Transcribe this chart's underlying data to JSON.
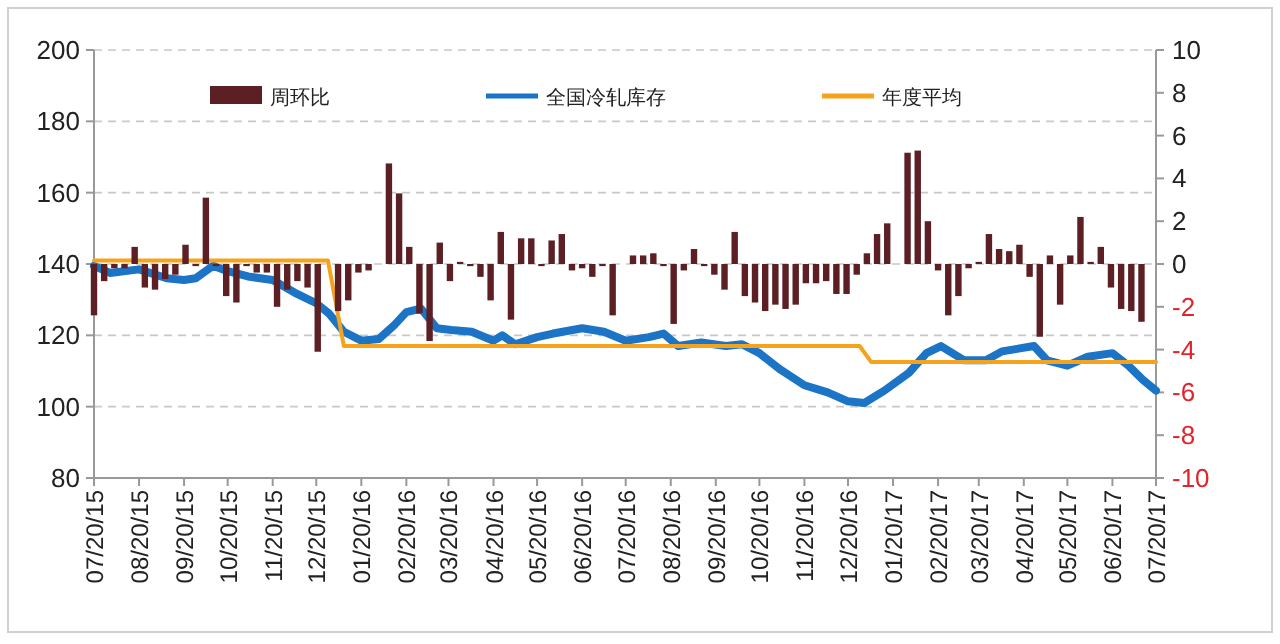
{
  "chart_data": {
    "type": "bar",
    "xlim": [
      "2015-07-20",
      "2017-07-20"
    ],
    "xticks": [
      {
        "value": "2015-07-20",
        "label": "07/20/15"
      },
      {
        "value": "2015-08-20",
        "label": "08/20/15"
      },
      {
        "value": "2015-09-20",
        "label": "09/20/15"
      },
      {
        "value": "2015-10-20",
        "label": "10/20/15"
      },
      {
        "value": "2015-11-20",
        "label": "11/20/15"
      },
      {
        "value": "2015-12-20",
        "label": "12/20/15"
      },
      {
        "value": "2016-01-20",
        "label": "01/20/16"
      },
      {
        "value": "2016-02-20",
        "label": "02/20/16"
      },
      {
        "value": "2016-03-20",
        "label": "03/20/16"
      },
      {
        "value": "2016-04-20",
        "label": "04/20/16"
      },
      {
        "value": "2016-05-20",
        "label": "05/20/16"
      },
      {
        "value": "2016-06-20",
        "label": "06/20/16"
      },
      {
        "value": "2016-07-20",
        "label": "07/20/16"
      },
      {
        "value": "2016-08-20",
        "label": "08/20/16"
      },
      {
        "value": "2016-09-20",
        "label": "09/20/16"
      },
      {
        "value": "2016-10-20",
        "label": "10/20/16"
      },
      {
        "value": "2016-11-20",
        "label": "11/20/16"
      },
      {
        "value": "2016-12-20",
        "label": "12/20/16"
      },
      {
        "value": "2017-01-20",
        "label": "01/20/17"
      },
      {
        "value": "2017-02-20",
        "label": "02/20/17"
      },
      {
        "value": "2017-03-20",
        "label": "03/20/17"
      },
      {
        "value": "2017-04-20",
        "label": "04/20/17"
      },
      {
        "value": "2017-05-20",
        "label": "05/20/17"
      },
      {
        "value": "2017-06-20",
        "label": "06/20/17"
      },
      {
        "value": "2017-07-20",
        "label": "07/20/17"
      }
    ],
    "ylim": [
      80,
      200
    ],
    "yticks": [
      80,
      100,
      120,
      140,
      160,
      180,
      200
    ],
    "y2lim": [
      -10,
      10
    ],
    "y2ticks": [
      -10,
      -8,
      -6,
      -4,
      -2,
      0,
      2,
      4,
      6,
      8,
      10
    ],
    "grid": "y",
    "legend": "top",
    "series": [
      {
        "name": "周环比",
        "axis": "y2",
        "color": "#5c1f24",
        "x": [
          "2015-07-20",
          "2015-07-27",
          "2015-08-03",
          "2015-08-10",
          "2015-08-17",
          "2015-08-24",
          "2015-08-31",
          "2015-09-07",
          "2015-09-14",
          "2015-09-21",
          "2015-09-28",
          "2015-10-05",
          "2015-10-12",
          "2015-10-19",
          "2015-10-26",
          "2015-11-02",
          "2015-11-09",
          "2015-11-16",
          "2015-11-23",
          "2015-11-30",
          "2015-12-07",
          "2015-12-14",
          "2015-12-21",
          "2016-01-04",
          "2016-01-11",
          "2016-01-18",
          "2016-01-25",
          "2016-02-08",
          "2016-02-15",
          "2016-02-22",
          "2016-02-29",
          "2016-03-07",
          "2016-03-14",
          "2016-03-21",
          "2016-03-28",
          "2016-04-04",
          "2016-04-11",
          "2016-04-18",
          "2016-04-25",
          "2016-05-02",
          "2016-05-09",
          "2016-05-16",
          "2016-05-23",
          "2016-05-30",
          "2016-06-06",
          "2016-06-13",
          "2016-06-20",
          "2016-06-27",
          "2016-07-04",
          "2016-07-11",
          "2016-07-25",
          "2016-08-01",
          "2016-08-08",
          "2016-08-15",
          "2016-08-22",
          "2016-08-29",
          "2016-09-05",
          "2016-09-12",
          "2016-09-19",
          "2016-09-26",
          "2016-10-03",
          "2016-10-10",
          "2016-10-17",
          "2016-10-24",
          "2016-10-31",
          "2016-11-07",
          "2016-11-14",
          "2016-11-21",
          "2016-11-28",
          "2016-12-05",
          "2016-12-12",
          "2016-12-19",
          "2016-12-26",
          "2017-01-02",
          "2017-01-09",
          "2017-01-16",
          "2017-01-30",
          "2017-02-06",
          "2017-02-13",
          "2017-02-20",
          "2017-02-27",
          "2017-03-06",
          "2017-03-13",
          "2017-03-20",
          "2017-03-27",
          "2017-04-03",
          "2017-04-10",
          "2017-04-17",
          "2017-04-24",
          "2017-05-01",
          "2017-05-08",
          "2017-05-15",
          "2017-05-22",
          "2017-05-29",
          "2017-06-05",
          "2017-06-12",
          "2017-06-19",
          "2017-06-26",
          "2017-07-03",
          "2017-07-10"
        ],
        "values": [
          -2.4,
          -0.8,
          -0.2,
          -0.2,
          0.8,
          -1.1,
          -1.2,
          -0.7,
          -0.5,
          0.9,
          -0.1,
          3.1,
          -0.1,
          -1.5,
          -1.8,
          -0.1,
          -0.4,
          -0.4,
          -2.0,
          -1.2,
          -0.8,
          -1.1,
          -4.1,
          -2.2,
          -1.7,
          -0.4,
          -0.3,
          4.7,
          3.3,
          0.8,
          -2.3,
          -3.6,
          1.0,
          -0.8,
          0.1,
          -0.1,
          -0.6,
          -1.7,
          1.5,
          -2.6,
          1.2,
          1.2,
          -0.1,
          1.1,
          1.4,
          -0.3,
          -0.2,
          -0.6,
          -0.1,
          -2.4,
          0.4,
          0.4,
          0.5,
          -0.1,
          -2.8,
          -0.3,
          0.7,
          -0.1,
          -0.5,
          -1.2,
          1.5,
          -1.5,
          -1.8,
          -2.2,
          -1.9,
          -2.1,
          -1.9,
          -0.9,
          -0.9,
          -0.8,
          -1.4,
          -1.4,
          -0.5,
          0.5,
          1.4,
          1.9,
          5.2,
          5.3,
          2.0,
          -0.3,
          -2.4,
          -1.5,
          -0.2,
          0.1,
          1.4,
          0.7,
          0.6,
          0.9,
          -0.6,
          -3.4,
          0.4,
          -1.9,
          0.4,
          2.2,
          0.1,
          0.8,
          -1.1,
          -2.1,
          -2.2,
          -2.7
        ]
      },
      {
        "name": "全国冷轧库存",
        "type": "line",
        "color": "#1b74c5",
        "x": [
          "2015-07-20",
          "2015-07-31",
          "2015-08-20",
          "2015-09-08",
          "2015-09-20",
          "2015-09-28",
          "2015-10-10",
          "2015-10-20",
          "2015-11-03",
          "2015-11-20",
          "2015-12-05",
          "2015-12-20",
          "2015-12-29",
          "2016-01-08",
          "2016-01-20",
          "2016-02-01",
          "2016-02-12",
          "2016-02-20",
          "2016-03-01",
          "2016-03-12",
          "2016-03-22",
          "2016-04-05",
          "2016-04-20",
          "2016-04-26",
          "2016-05-05",
          "2016-05-20",
          "2016-05-31",
          "2016-06-20",
          "2016-07-05",
          "2016-07-20",
          "2016-08-05",
          "2016-08-15",
          "2016-08-25",
          "2016-09-10",
          "2016-09-27",
          "2016-10-08",
          "2016-10-20",
          "2016-11-03",
          "2016-11-20",
          "2016-12-06",
          "2016-12-20",
          "2016-12-31",
          "2017-01-14",
          "2017-01-31",
          "2017-02-12",
          "2017-02-22",
          "2017-03-10",
          "2017-03-25",
          "2017-04-05",
          "2017-04-27",
          "2017-05-06",
          "2017-05-20",
          "2017-06-03",
          "2017-06-20",
          "2017-07-01",
          "2017-07-11",
          "2017-07-20"
        ],
        "values": [
          139.5,
          137.5,
          138.5,
          136,
          135.5,
          136,
          139.5,
          138,
          136.5,
          135.5,
          132,
          129,
          126,
          121,
          118.5,
          119,
          123,
          126.5,
          127.5,
          122,
          121.5,
          121,
          118.5,
          120,
          117.5,
          119.5,
          120.5,
          122,
          121,
          118.5,
          119.5,
          120.5,
          117,
          118,
          117,
          117.5,
          115,
          110.5,
          106,
          104,
          101.5,
          101,
          104.5,
          109.5,
          115,
          117,
          113,
          113,
          115.5,
          117,
          113,
          111.5,
          114,
          115,
          111.5,
          107.5,
          104.5
        ]
      },
      {
        "name": "年度平均",
        "type": "line",
        "color": "#f5a21c",
        "x": [
          "2015-07-20",
          "2015-12-28",
          "2016-01-08",
          "2016-12-28",
          "2017-01-05",
          "2017-07-20"
        ],
        "values": [
          141,
          141,
          117,
          117,
          112.5,
          112.5
        ]
      }
    ]
  }
}
